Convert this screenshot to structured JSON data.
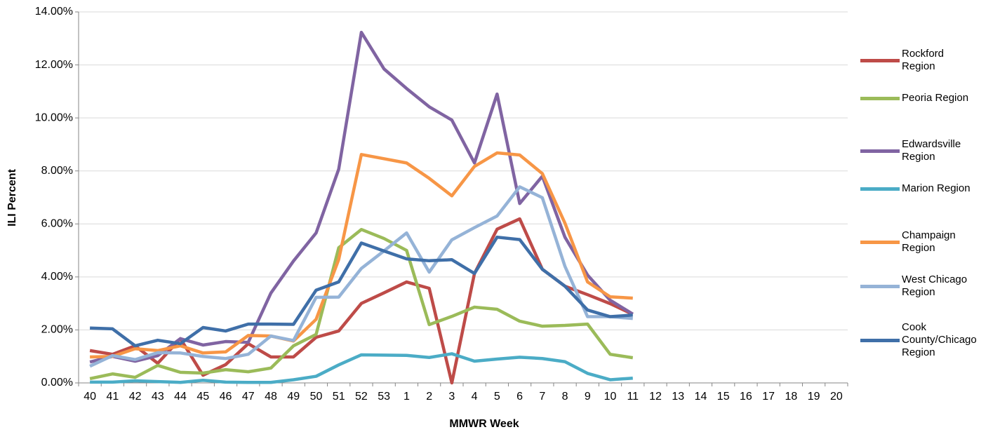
{
  "chart_data": {
    "type": "line",
    "x_label": "MMWR Week",
    "y_label": "ILI Percent",
    "categories": [
      "40",
      "41",
      "42",
      "43",
      "44",
      "45",
      "46",
      "47",
      "48",
      "49",
      "50",
      "51",
      "52",
      "53",
      "1",
      "2",
      "3",
      "4",
      "5",
      "6",
      "7",
      "8",
      "9",
      "10",
      "11",
      "12",
      "13",
      "14",
      "15",
      "16",
      "17",
      "18",
      "19",
      "20"
    ],
    "ylim": [
      0,
      14
    ],
    "yticks": [
      {
        "value": 0,
        "label": "0.00%"
      },
      {
        "value": 2,
        "label": "2.00%"
      },
      {
        "value": 4,
        "label": "4.00%"
      },
      {
        "value": 6,
        "label": "6.00%"
      },
      {
        "value": 8,
        "label": "8.00%"
      },
      {
        "value": 10,
        "label": "10.00%"
      },
      {
        "value": 12,
        "label": "12.00%"
      },
      {
        "value": 14,
        "label": "14.00%"
      }
    ],
    "grid": true,
    "legend": "right",
    "series": [
      {
        "name": "Rockford Region",
        "color": "#be4b48",
        "values": [
          1.22,
          1.08,
          1.4,
          0.74,
          1.67,
          0.29,
          0.69,
          1.48,
          0.98,
          0.98,
          1.72,
          1.96,
          3.0,
          3.4,
          3.81,
          3.57,
          0,
          4.13,
          5.8,
          6.19,
          4.29,
          3.65,
          3.33,
          2.99,
          2.59,
          null,
          null,
          null,
          null,
          null,
          null,
          null,
          null,
          null
        ]
      },
      {
        "name": "Peoria Region",
        "color": "#9bbb59",
        "values": [
          0.16,
          0.34,
          0.21,
          0.66,
          0.4,
          0.37,
          0.5,
          0.42,
          0.56,
          1.4,
          1.83,
          5.1,
          5.79,
          5.45,
          5.0,
          2.2,
          2.51,
          2.86,
          2.78,
          2.33,
          2.14,
          2.17,
          2.22,
          1.08,
          0.95,
          null,
          null,
          null,
          null,
          null,
          null,
          null,
          null,
          null
        ]
      },
      {
        "name": "Edwardsville Region",
        "color": "#8064a2",
        "values": [
          0.79,
          1.0,
          0.82,
          1.03,
          1.67,
          1.43,
          1.56,
          1.53,
          3.39,
          4.6,
          5.66,
          8.07,
          13.23,
          11.85,
          11.11,
          10.42,
          9.92,
          8.3,
          10.9,
          6.77,
          7.8,
          5.5,
          4.07,
          3.12,
          2.6,
          null,
          null,
          null,
          null,
          null,
          null,
          null,
          null,
          null
        ]
      },
      {
        "name": "Marion Region",
        "color": "#4bacc6",
        "values": [
          0.03,
          0.03,
          0.08,
          0.05,
          0.02,
          0.1,
          0.03,
          0.02,
          0.02,
          0.12,
          0.25,
          0.68,
          1.06,
          1.05,
          1.04,
          0.96,
          1.1,
          0.82,
          0.9,
          0.97,
          0.92,
          0.8,
          0.36,
          0.12,
          0.18,
          null,
          null,
          null,
          null,
          null,
          null,
          null,
          null,
          null
        ]
      },
      {
        "name": "Champaign Region",
        "color": "#f79646",
        "values": [
          0.98,
          1.0,
          1.29,
          1.22,
          1.4,
          1.13,
          1.17,
          1.79,
          1.77,
          1.58,
          2.4,
          4.66,
          8.62,
          8.46,
          8.3,
          7.72,
          7.06,
          8.17,
          8.68,
          8.6,
          7.9,
          6.03,
          3.81,
          3.25,
          3.2,
          null,
          null,
          null,
          null,
          null,
          null,
          null,
          null,
          null
        ]
      },
      {
        "name": "West Chicago Region",
        "color": "#95b3d7",
        "values": [
          0.63,
          1.03,
          0.88,
          1.14,
          1.13,
          1.0,
          0.92,
          1.08,
          1.77,
          1.6,
          3.23,
          3.24,
          4.32,
          4.98,
          5.66,
          4.18,
          5.4,
          5.86,
          6.3,
          7.4,
          6.99,
          4.4,
          2.5,
          2.5,
          2.43,
          null,
          null,
          null,
          null,
          null,
          null,
          null,
          null,
          null
        ]
      },
      {
        "name": "Cook County/Chicago Region",
        "color": "#3f6fa8",
        "values": [
          2.07,
          2.04,
          1.4,
          1.61,
          1.48,
          2.09,
          1.96,
          2.22,
          2.22,
          2.21,
          3.5,
          3.81,
          5.28,
          4.98,
          4.68,
          4.61,
          4.65,
          4.13,
          5.5,
          5.41,
          4.29,
          3.65,
          2.75,
          2.5,
          2.56,
          null,
          null,
          null,
          null,
          null,
          null,
          null,
          null,
          null
        ]
      }
    ]
  }
}
